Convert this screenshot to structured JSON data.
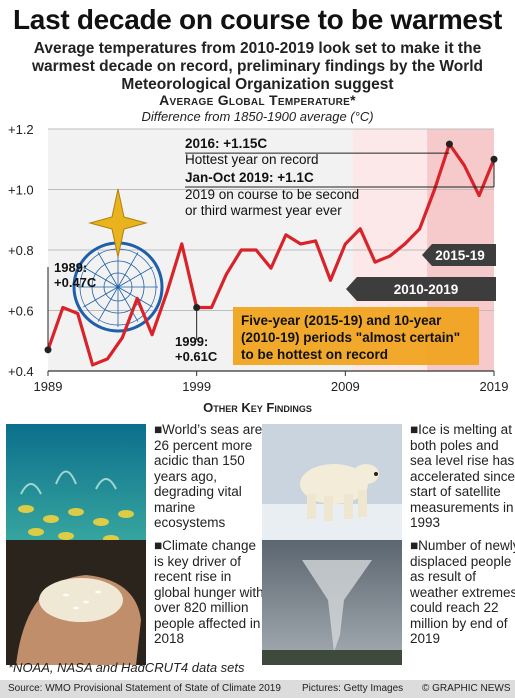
{
  "header": {
    "title": "Last decade on course to be warmest",
    "subtitle": "Average temperatures from 2010-2019 look set to make it the warmest decade on record, preliminary findings by the World Meteorological Organization suggest"
  },
  "chart_data": {
    "type": "line",
    "title": "Average Global Temperature*",
    "subtitle": "Difference from 1850-1900 average (°C)",
    "x": [
      1989,
      1990,
      1991,
      1992,
      1993,
      1994,
      1995,
      1996,
      1997,
      1998,
      1999,
      2000,
      2001,
      2002,
      2003,
      2004,
      2005,
      2006,
      2007,
      2008,
      2009,
      2010,
      2011,
      2012,
      2013,
      2014,
      2015,
      2016,
      2017,
      2018,
      2019
    ],
    "series": [
      {
        "values": [
          0.47,
          0.61,
          0.59,
          0.42,
          0.44,
          0.51,
          0.64,
          0.52,
          0.66,
          0.82,
          0.61,
          0.61,
          0.72,
          0.8,
          0.8,
          0.74,
          0.85,
          0.82,
          0.83,
          0.7,
          0.82,
          0.87,
          0.76,
          0.78,
          0.82,
          0.87,
          1.0,
          1.15,
          1.08,
          0.98,
          1.1
        ]
      }
    ],
    "xlim": [
      1989,
      2019
    ],
    "ylim": [
      0.4,
      1.2
    ],
    "xticks": [
      "1989",
      "1999",
      "2009",
      "2019"
    ],
    "yticks": [
      "+0.4",
      "+0.6",
      "+0.8",
      "+1.0",
      "+1.2"
    ],
    "colors": {
      "line": "#d8232a",
      "highlight_2015_19": "#f6c9cb",
      "highlight_2010_19": "#fce8e8",
      "label_box": "#3d3d3d",
      "callout": "#f0a421"
    },
    "annotations": {
      "a1989": "1989:\n+0.47C",
      "a1999": "1999:\n+0.61C",
      "a2016_bold": "2016: +1.15C",
      "a2016_text": "Hottest year on record",
      "a2019_bold": "Jan-Oct 2019: +1.1C",
      "a2019_text": "2019 on course to be second\nor third warmest year ever",
      "band_2015": "2015-19",
      "band_2010": "2010-2019",
      "callout": "Five-year (2015-19) and 10-year\n(2010-19) periods \"almost certain\"\nto be hottest on record"
    }
  },
  "findings_title": "Other Key Findings",
  "findings": [
    {
      "image": "fish-reef",
      "text": "World’s seas are 26 percent more acidic than 150 years ago, degrading vital marine ecosystems"
    },
    {
      "image": "polar-bear",
      "text": "Ice is melting at both poles and sea level rise has accelerated since start of satellite measurements in 1993"
    },
    {
      "image": "rice-hand",
      "text": "Climate change is key driver of recent rise in global hunger with over 820 million people affected in 2018"
    },
    {
      "image": "tornado",
      "text": "Number of newly displaced people as result of weather extremes could reach 22 million by end of 2019"
    }
  ],
  "footer": {
    "footnote": "*NOAA, NASA and HadCRUT4 data sets",
    "source": "Source: WMO Provisional Statement of State of Climate 2019",
    "credit": "Pictures: Getty Images",
    "brand": "© GRAPHIC NEWS"
  }
}
